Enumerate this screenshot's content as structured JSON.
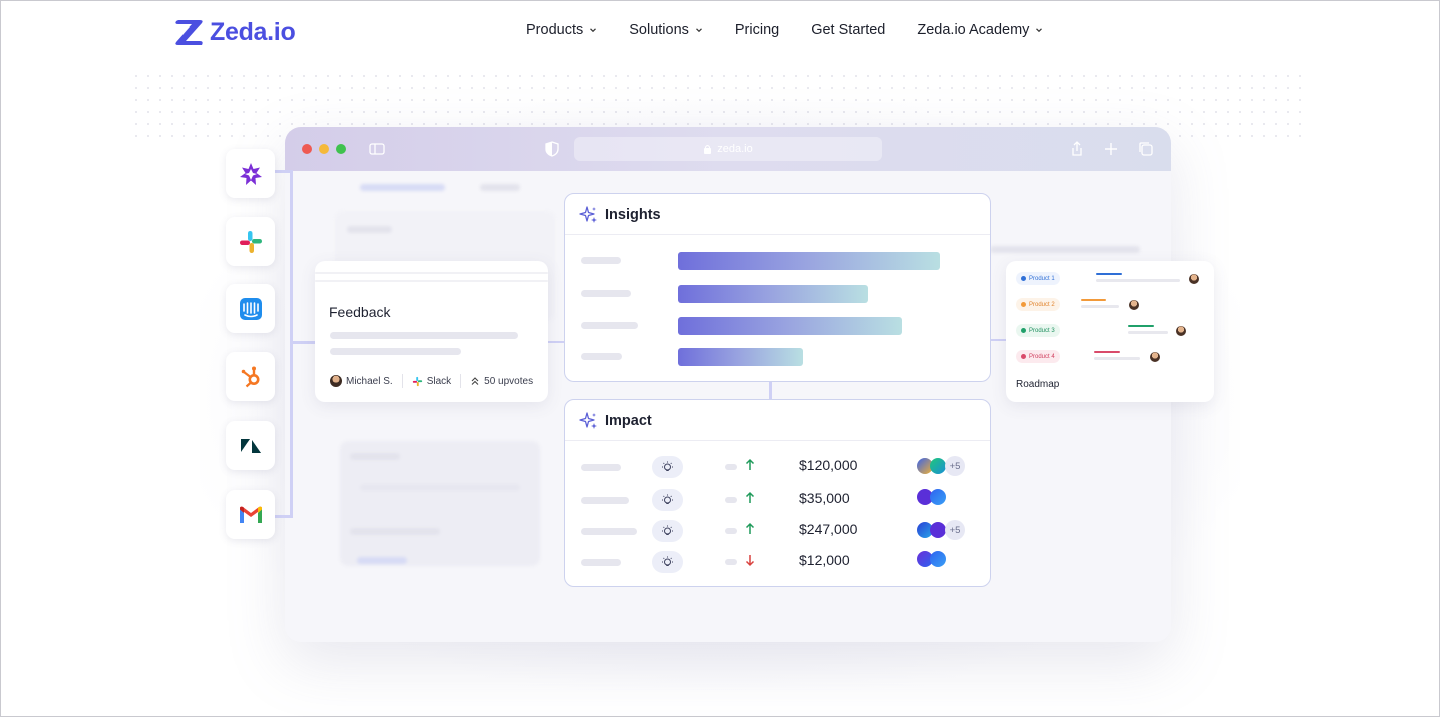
{
  "brand": {
    "name": "Zeda.io",
    "color": "#4b4fe0"
  },
  "nav": {
    "items": [
      {
        "label": "Products",
        "dropdown": true
      },
      {
        "label": "Solutions",
        "dropdown": true
      },
      {
        "label": "Pricing",
        "dropdown": false
      },
      {
        "label": "Get Started",
        "dropdown": false
      },
      {
        "label": "Zeda.io Academy",
        "dropdown": true
      }
    ]
  },
  "browser": {
    "url": "zeda.io"
  },
  "integrations": [
    "spark-icon",
    "slack-icon",
    "intercom-icon",
    "hubspot-icon",
    "zendesk-icon",
    "gmail-icon"
  ],
  "feedback": {
    "title": "Feedback",
    "author": "Michael S.",
    "source": "Slack",
    "upvotes": "50 upvotes"
  },
  "insights": {
    "title": "Insights",
    "levels": [
      0.69,
      0.5,
      0.59,
      0.33
    ]
  },
  "impact": {
    "title": "Impact",
    "rows": [
      {
        "amount": "$120,000",
        "trend": "up",
        "extra": "+5"
      },
      {
        "amount": "$35,000",
        "trend": "up",
        "extra": ""
      },
      {
        "amount": "$247,000",
        "trend": "up",
        "extra": "+5"
      },
      {
        "amount": "$12,000",
        "trend": "down",
        "extra": ""
      }
    ]
  },
  "roadmap": {
    "title": "Roadmap",
    "tags": [
      "Product 1",
      "Product 2",
      "Product 3",
      "Product 4"
    ],
    "colors": [
      "#2f6fd6",
      "#f29a3a",
      "#20a06a",
      "#d94a6a"
    ]
  }
}
